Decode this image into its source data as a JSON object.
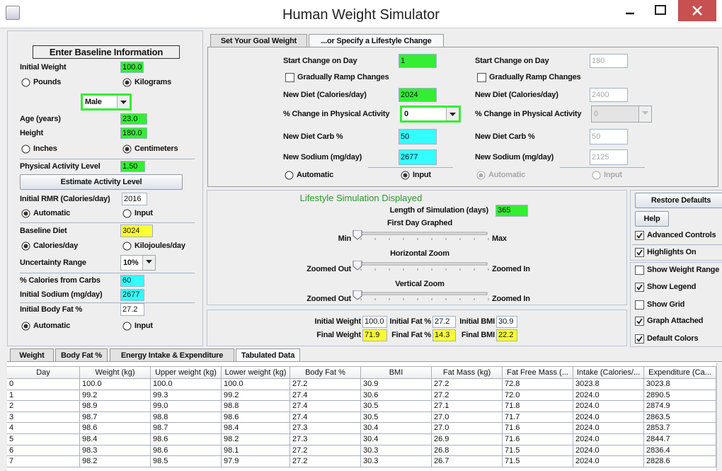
{
  "window": {
    "title": "Human Weight Simulator"
  },
  "baseline": {
    "heading": "Enter Baseline Information",
    "initial_weight": {
      "label": "Initial Weight",
      "value": "100.0",
      "color": "#33ee33"
    },
    "weight_units": [
      {
        "label": "Pounds",
        "selected": false
      },
      {
        "label": "Kilograms",
        "selected": true
      }
    ],
    "sex": {
      "value": "Male",
      "border": "#33ee33"
    },
    "age": {
      "label": "Age (years)",
      "value": "23.0",
      "color": "#33ee33"
    },
    "height": {
      "label": "Height",
      "value": "180.0",
      "color": "#33ee33"
    },
    "height_units": [
      {
        "label": "Inches",
        "selected": false
      },
      {
        "label": "Centimeters",
        "selected": true
      }
    ],
    "activity_level": {
      "label": "Physical Activity Level",
      "value": "1.50",
      "color": "#33ee33"
    },
    "estimate_button": "Estimate Activity Level",
    "rmr": {
      "label": "Initial RMR (Calories/day)",
      "value": "2016",
      "color": "#ffffff"
    },
    "rmr_mode": [
      {
        "label": "Automatic",
        "selected": true
      },
      {
        "label": "Input",
        "selected": false
      }
    ],
    "diet": {
      "label": "Baseline Diet",
      "value": "3024",
      "color": "#ffff33"
    },
    "diet_units": [
      {
        "label": "Calories/day",
        "selected": true
      },
      {
        "label": "Kilojoules/day",
        "selected": false
      }
    ],
    "uncertainty": {
      "label": "Uncertainty Range",
      "value": "10%"
    },
    "carbs": {
      "label": "% Calories from Carbs",
      "value": "60",
      "color": "#33ffff"
    },
    "sodium": {
      "label": "Initial Sodium (mg/day)",
      "value": "2677",
      "color": "#33ffff"
    },
    "body_fat": {
      "label": "Initial Body Fat %",
      "value": "27.2",
      "color": "#ffffff"
    },
    "body_fat_mode": [
      {
        "label": "Automatic",
        "selected": true
      },
      {
        "label": "Input",
        "selected": false
      }
    ]
  },
  "lifestyle": {
    "tabs": [
      {
        "label": "Set Your Goal Weight",
        "selected": false
      },
      {
        "label": "...or Specify a Lifestyle Change",
        "selected": true
      }
    ],
    "change1": {
      "enabled": true,
      "start_day": {
        "label": "Start Change on Day",
        "value": "1",
        "color": "#33ee33"
      },
      "ramp": {
        "label": "Gradually Ramp Changes",
        "checked": false
      },
      "diet": {
        "label": "New Diet (Calories/day)",
        "value": "2024",
        "color": "#33ee33"
      },
      "activity": {
        "label": "% Change in Physical Activity",
        "value": "0",
        "border": "#33ee33"
      },
      "carb": {
        "label": "New Diet Carb %",
        "value": "50",
        "color": "#33ffff"
      },
      "sodium": {
        "label": "New Sodium (mg/day)",
        "value": "2677",
        "color": "#33ffff"
      },
      "mode": [
        {
          "label": "Automatic",
          "selected": false
        },
        {
          "label": "Input",
          "selected": true
        }
      ]
    },
    "change2": {
      "enabled": false,
      "start_day": {
        "label": "Start Change on Day",
        "value": "180",
        "color": "#ffffff"
      },
      "ramp": {
        "label": "Gradually Ramp Changes",
        "checked": false
      },
      "diet": {
        "label": "New Diet (Calories/day)",
        "value": "2400",
        "color": "#ffffff"
      },
      "activity": {
        "label": "% Change in Physical Activity",
        "value": "0"
      },
      "carb": {
        "label": "New Diet Carb %",
        "value": "50",
        "color": "#ffffff"
      },
      "sodium": {
        "label": "New Sodium (mg/day)",
        "value": "2125",
        "color": "#ffffff"
      },
      "mode": [
        {
          "label": "Automatic",
          "selected": true
        },
        {
          "label": "Input",
          "selected": false
        }
      ]
    }
  },
  "display": {
    "title": "Lifestyle Simulation Displayed",
    "length": {
      "label": "Length of Simulation (days)",
      "value": "365",
      "color": "#33ee33"
    },
    "first_day": {
      "label": "First Day Graphed",
      "min": "Min",
      "max": "Max"
    },
    "horizontal_zoom": {
      "label": "Horizontal Zoom",
      "min": "Zoomed Out",
      "max": "Zoomed In"
    },
    "vertical_zoom": {
      "label": "Vertical Zoom",
      "min": "Zoomed Out",
      "max": "Zoomed In"
    }
  },
  "results": {
    "initial_weight": {
      "label": "Initial Weight",
      "value": "100.0",
      "color": "#ffffff"
    },
    "initial_fat": {
      "label": "Initial Fat %",
      "value": "27.2",
      "color": "#ffffff"
    },
    "initial_bmi": {
      "label": "Initial BMI",
      "value": "30.9",
      "color": "#ffffff"
    },
    "final_weight": {
      "label": "Final Weight",
      "value": "71.9",
      "color": "#ffff33"
    },
    "final_fat": {
      "label": "Final Fat %",
      "value": "14.3",
      "color": "#ffff33"
    },
    "final_bmi": {
      "label": "Final BMI",
      "value": "22.2",
      "color": "#ffff33"
    }
  },
  "controls": {
    "buttons": [
      "Restore Defaults",
      "Help"
    ],
    "options": [
      {
        "label": "Advanced Controls",
        "checked": true
      },
      {
        "label": "Highlights On",
        "checked": true
      },
      {
        "label": "Show Weight Range",
        "checked": false
      },
      {
        "label": "Show Legend",
        "checked": true
      },
      {
        "label": "Show Grid",
        "checked": false
      },
      {
        "label": "Graph Attached",
        "checked": true
      },
      {
        "label": "Default Colors",
        "checked": true
      }
    ]
  },
  "output": {
    "tabs": [
      {
        "label": "Weight",
        "selected": false
      },
      {
        "label": "Body Fat %",
        "selected": false
      },
      {
        "label": "Energy Intake & Expenditure",
        "selected": false
      },
      {
        "label": "Tabulated Data",
        "selected": true
      }
    ],
    "table": {
      "columns": [
        "Day",
        "Weight (kg)",
        "Upper weight (kg)",
        "Lower weight (kg)",
        "Body Fat %",
        "BMI",
        "Fat Mass (kg)",
        "Fat Free Mass (...",
        "Intake (Calories/...",
        "Expenditure (Ca..."
      ],
      "rows": [
        [
          "0",
          "100.0",
          "100.0",
          "100.0",
          "27.2",
          "30.9",
          "27.2",
          "72.8",
          "3023.8",
          "3023.8"
        ],
        [
          "1",
          "99.2",
          "99.3",
          "99.2",
          "27.4",
          "30.6",
          "27.2",
          "72.0",
          "2024.0",
          "2890.5"
        ],
        [
          "2",
          "98.9",
          "99.0",
          "98.8",
          "27.4",
          "30.5",
          "27.1",
          "71.8",
          "2024.0",
          "2874.9"
        ],
        [
          "3",
          "98.7",
          "98.8",
          "98.6",
          "27.4",
          "30.5",
          "27.0",
          "71.7",
          "2024.0",
          "2863.5"
        ],
        [
          "4",
          "98.6",
          "98.7",
          "98.4",
          "27.3",
          "30.4",
          "27.0",
          "71.6",
          "2024.0",
          "2853.7"
        ],
        [
          "5",
          "98.4",
          "98.6",
          "98.2",
          "27.3",
          "30.4",
          "26.9",
          "71.6",
          "2024.0",
          "2844.7"
        ],
        [
          "6",
          "98.3",
          "98.6",
          "98.1",
          "27.2",
          "30.3",
          "26.8",
          "71.5",
          "2024.0",
          "2836.4"
        ],
        [
          "7",
          "98.2",
          "98.5",
          "97.9",
          "27.2",
          "30.3",
          "26.7",
          "71.5",
          "2024.0",
          "2828.6"
        ]
      ]
    }
  }
}
